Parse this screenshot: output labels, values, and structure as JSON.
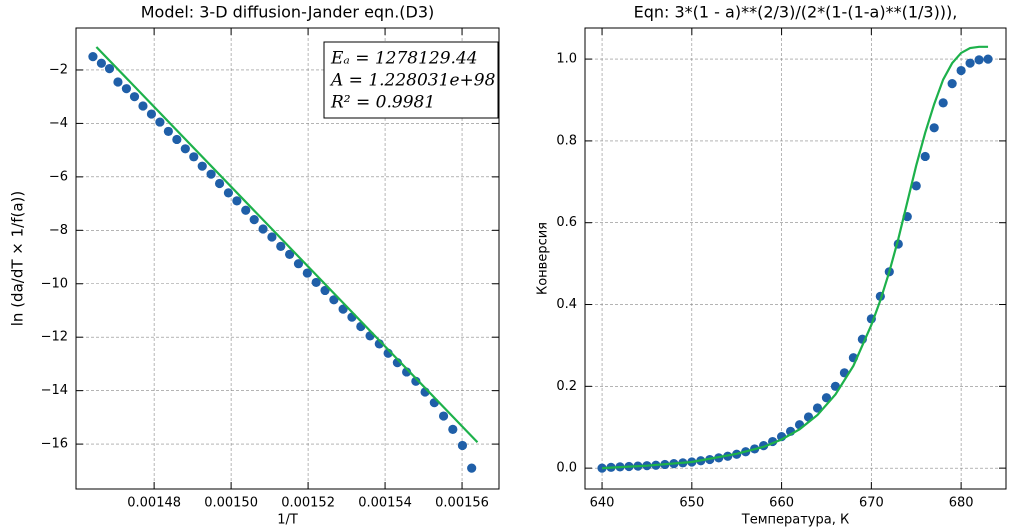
{
  "chart_data": [
    {
      "type": "scatter",
      "title": "Model: 3-D diffusion-Jander eqn.(D3)",
      "x_label": "1/T",
      "y_label": "ln (da/dT × 1/f(a))",
      "annotations": [
        "Eₐ = 1278129.44",
        "A = 1.228031e+98",
        "R² = 0.9981"
      ],
      "xlim": [
        0.0014597,
        0.0015696
      ],
      "ylim": [
        -17.68,
        -0.43
      ],
      "xticks": [
        0.00148,
        {
          "value": 0.0015,
          "label": "0.00150"
        },
        0.00152,
        0.00154,
        0.00156
      ],
      "yticks": [
        {
          "value": -16,
          "label": "−16"
        },
        {
          "value": -14,
          "label": "−14"
        },
        {
          "value": -12,
          "label": "−12"
        },
        {
          "value": -10,
          "label": "−10"
        },
        {
          "value": -8,
          "label": "−8"
        },
        {
          "value": -6,
          "label": "−6"
        },
        {
          "value": -4,
          "label": "−4"
        },
        {
          "value": -2,
          "label": "−2"
        }
      ],
      "grid": true,
      "series": [
        {
          "kind": "points",
          "color": "#1f5fa8",
          "x": [
            0.0014641,
            0.0014663,
            0.0014684,
            0.0014706,
            0.0014728,
            0.0014749,
            0.0014771,
            0.0014793,
            0.0014815,
            0.0014837,
            0.0014859,
            0.0014881,
            0.0014903,
            0.0014925,
            0.0014948,
            0.001497,
            0.0014993,
            0.0015015,
            0.0015038,
            0.001506,
            0.0015083,
            0.0015106,
            0.0015129,
            0.0015152,
            0.0015175,
            0.0015198,
            0.0015221,
            0.0015244,
            0.0015267,
            0.0015291,
            0.0015314,
            0.0015337,
            0.0015361,
            0.0015385,
            0.0015408,
            0.0015432,
            0.0015456,
            0.001548,
            0.0015504,
            0.0015528,
            0.0015552,
            0.0015576,
            0.0015601,
            0.0015625
          ],
          "values": [
            -1.5,
            -1.75,
            -1.95,
            -2.45,
            -2.7,
            -3.0,
            -3.35,
            -3.65,
            -3.95,
            -4.3,
            -4.6,
            -4.95,
            -5.25,
            -5.6,
            -5.9,
            -6.25,
            -6.6,
            -6.9,
            -7.25,
            -7.6,
            -7.95,
            -8.25,
            -8.6,
            -8.9,
            -9.25,
            -9.6,
            -9.95,
            -10.25,
            -10.6,
            -10.95,
            -11.25,
            -11.6,
            -11.95,
            -12.25,
            -12.6,
            -12.95,
            -13.3,
            -13.65,
            -14.05,
            -14.45,
            -14.95,
            -15.45,
            -16.05,
            -16.9
          ]
        },
        {
          "kind": "line",
          "color": "#1db14b",
          "x": [
            0.001465,
            0.001564
          ],
          "values": [
            -1.14,
            -15.93
          ]
        }
      ]
    },
    {
      "type": "scatter",
      "title": "Eqn: 3*(1 - a)**(2/3)/(2*(1-(1-a)**(1/3))),",
      "x_label": "Температура, К",
      "y_label": "Конверсия",
      "xlim": [
        638.1,
        685.0
      ],
      "ylim": [
        -0.051,
        1.076
      ],
      "xticks": [
        640,
        650,
        660,
        670,
        680
      ],
      "yticks": [
        {
          "value": 0,
          "label": "0.0"
        },
        0.2,
        0.4,
        0.6,
        0.8,
        {
          "value": 1,
          "label": "1.0"
        }
      ],
      "grid": true,
      "series": [
        {
          "kind": "points",
          "color": "#1f5fa8",
          "x": [
            640,
            641,
            642,
            643,
            644,
            645,
            646,
            647,
            648,
            649,
            650,
            651,
            652,
            653,
            654,
            655,
            656,
            657,
            658,
            659,
            660,
            661,
            662,
            663,
            664,
            665,
            666,
            667,
            668,
            669,
            670,
            671,
            672,
            673,
            674,
            675,
            676,
            677,
            678,
            679,
            680,
            681,
            682,
            683
          ],
          "values": [
            0.0,
            0.002,
            0.003,
            0.004,
            0.005,
            0.006,
            0.007,
            0.009,
            0.011,
            0.013,
            0.015,
            0.018,
            0.021,
            0.025,
            0.029,
            0.034,
            0.04,
            0.047,
            0.055,
            0.065,
            0.077,
            0.09,
            0.106,
            0.125,
            0.147,
            0.172,
            0.2,
            0.233,
            0.27,
            0.315,
            0.365,
            0.42,
            0.48,
            0.548,
            0.615,
            0.69,
            0.762,
            0.832,
            0.893,
            0.94,
            0.972,
            0.99,
            0.998,
            1.0
          ]
        },
        {
          "kind": "line",
          "color": "#1db14b",
          "x": [
            640,
            645,
            650,
            655,
            658,
            660,
            662,
            664,
            666,
            668,
            670,
            671,
            672,
            673,
            674,
            675,
            676,
            677,
            678,
            679,
            680,
            681,
            682,
            683
          ],
          "values": [
            0.0,
            0.006,
            0.015,
            0.035,
            0.052,
            0.07,
            0.095,
            0.13,
            0.18,
            0.25,
            0.35,
            0.41,
            0.48,
            0.56,
            0.65,
            0.74,
            0.82,
            0.89,
            0.95,
            0.99,
            1.015,
            1.027,
            1.03,
            1.03
          ]
        }
      ]
    }
  ]
}
